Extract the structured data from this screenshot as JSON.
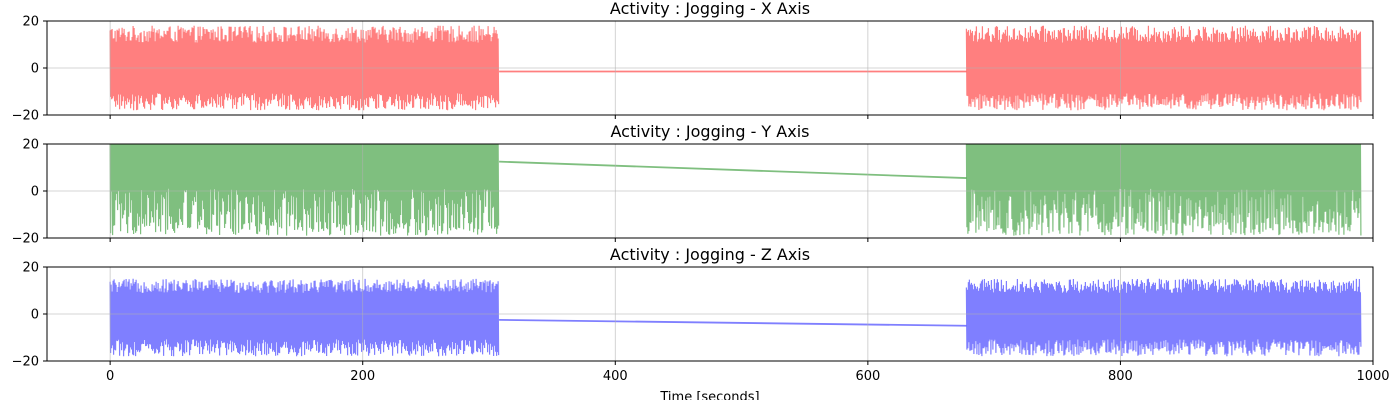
{
  "chart_data": [
    {
      "type": "line",
      "title": "Activity : Jogging - X Axis",
      "xlabel": "",
      "ylabel": "",
      "xlim": [
        -50,
        1000
      ],
      "ylim": [
        -20,
        20
      ],
      "yticks": [
        -20,
        0,
        20
      ],
      "xticks": [
        0,
        200,
        400,
        600,
        800,
        1000
      ],
      "show_xtick_labels": false,
      "grid": true,
      "color": "#ff0000",
      "alpha": 0.5,
      "segments": [
        {
          "x_start": 0,
          "x_end": 308,
          "y_min": -18,
          "y_max": 18,
          "pattern": "symmetric"
        },
        {
          "x_start": 678,
          "x_end": 990,
          "y_min": -18,
          "y_max": 18,
          "pattern": "symmetric"
        }
      ],
      "bridge": [
        [
          308,
          -1.5
        ],
        [
          678,
          -1.5
        ]
      ]
    },
    {
      "type": "line",
      "title": "Activity : Jogging - Y Axis",
      "xlabel": "",
      "ylabel": "",
      "xlim": [
        -50,
        1000
      ],
      "ylim": [
        -20,
        20
      ],
      "yticks": [
        -20,
        0,
        20
      ],
      "xticks": [
        0,
        200,
        400,
        600,
        800,
        1000
      ],
      "show_xtick_labels": false,
      "grid": true,
      "color": "#008000",
      "alpha": 0.5,
      "segments": [
        {
          "x_start": 0,
          "x_end": 308,
          "y_min": -19,
          "y_max": 20,
          "pattern": "clipped-top"
        },
        {
          "x_start": 678,
          "x_end": 990,
          "y_min": -19,
          "y_max": 20,
          "pattern": "clipped-top"
        }
      ],
      "bridge": [
        [
          308,
          12.5
        ],
        [
          678,
          5.5
        ]
      ]
    },
    {
      "type": "line",
      "title": "Activity : Jogging - Z Axis",
      "xlabel": "Time [seconds]",
      "ylabel": "",
      "xlim": [
        -50,
        1000
      ],
      "ylim": [
        -20,
        20
      ],
      "yticks": [
        -20,
        0,
        20
      ],
      "xticks": [
        0,
        200,
        400,
        600,
        800,
        1000
      ],
      "show_xtick_labels": true,
      "grid": true,
      "color": "#0000ff",
      "alpha": 0.5,
      "segments": [
        {
          "x_start": 0,
          "x_end": 308,
          "y_min": -18,
          "y_max": 15,
          "pattern": "symmetric"
        },
        {
          "x_start": 678,
          "x_end": 990,
          "y_min": -18,
          "y_max": 15,
          "pattern": "symmetric"
        }
      ],
      "bridge": [
        [
          308,
          -2.5
        ],
        [
          678,
          -5
        ]
      ]
    }
  ]
}
